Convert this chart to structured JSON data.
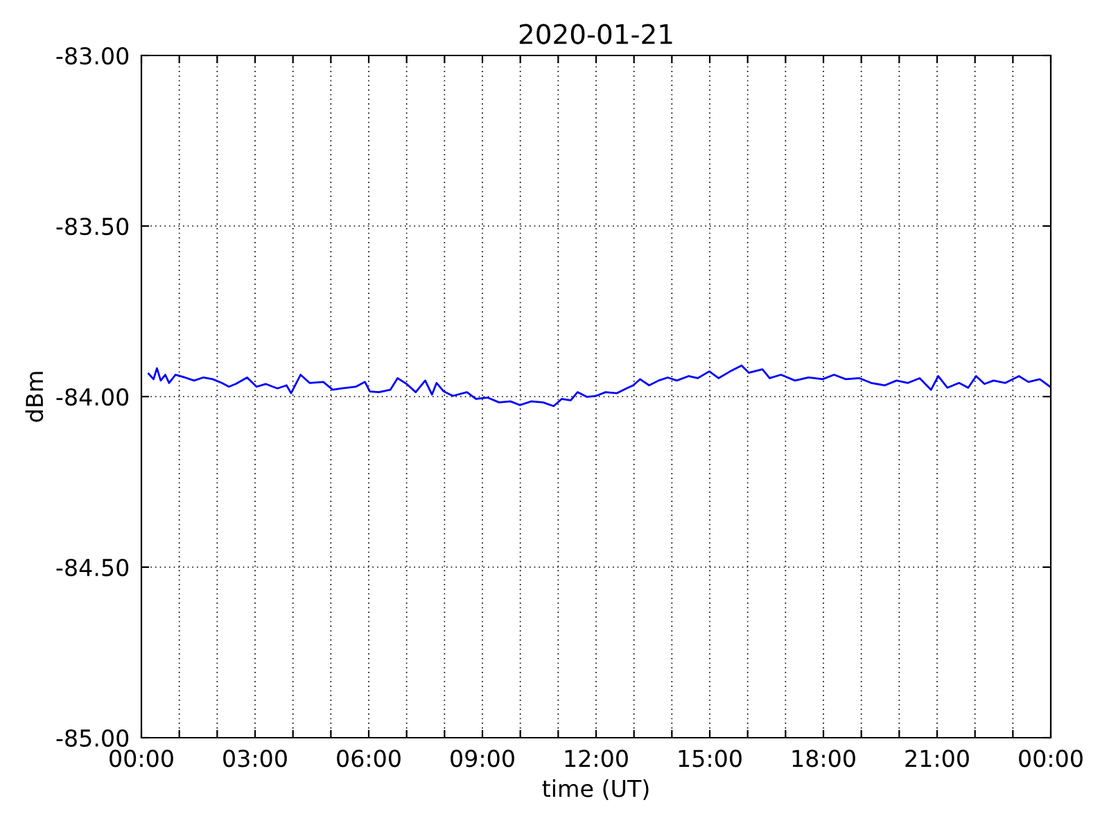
{
  "chart_data": {
    "type": "line",
    "title": "2020-01-21",
    "xlabel": "time (UT)",
    "ylabel": "dBm",
    "x": [
      0.19,
      0.32,
      0.41,
      0.51,
      0.63,
      0.73,
      0.9,
      1.15,
      1.39,
      1.63,
      1.88,
      2.12,
      2.31,
      2.49,
      2.79,
      3.04,
      3.28,
      3.59,
      3.83,
      3.95,
      4.2,
      4.44,
      4.8,
      5.05,
      5.29,
      5.66,
      5.9,
      6.03,
      6.27,
      6.57,
      6.76,
      7.0,
      7.24,
      7.49,
      7.67,
      7.79,
      7.98,
      8.22,
      8.59,
      8.83,
      9.14,
      9.44,
      9.74,
      9.99,
      10.29,
      10.6,
      10.88,
      11.09,
      11.33,
      11.51,
      11.76,
      12.0,
      12.25,
      12.55,
      12.8,
      12.98,
      13.16,
      13.4,
      13.65,
      13.89,
      14.13,
      14.44,
      14.68,
      14.99,
      15.23,
      15.54,
      15.84,
      16.03,
      16.39,
      16.58,
      16.88,
      17.25,
      17.61,
      17.98,
      18.28,
      18.59,
      18.95,
      19.26,
      19.62,
      19.93,
      20.23,
      20.54,
      20.84,
      21.03,
      21.27,
      21.58,
      21.82,
      22.03,
      22.25,
      22.49,
      22.8,
      23.16,
      23.41,
      23.71,
      23.98
    ],
    "series": [
      {
        "color": "#0000ff",
        "values": [
          -83.933,
          -83.949,
          -83.917,
          -83.953,
          -83.936,
          -83.96,
          -83.936,
          -83.944,
          -83.953,
          -83.944,
          -83.949,
          -83.96,
          -83.971,
          -83.963,
          -83.944,
          -83.971,
          -83.963,
          -83.976,
          -83.967,
          -83.99,
          -83.936,
          -83.96,
          -83.957,
          -83.98,
          -83.976,
          -83.971,
          -83.957,
          -83.985,
          -83.987,
          -83.98,
          -83.946,
          -83.963,
          -83.987,
          -83.953,
          -83.994,
          -83.96,
          -83.985,
          -83.998,
          -83.987,
          -84.007,
          -84.003,
          -84.017,
          -84.014,
          -84.025,
          -84.014,
          -84.017,
          -84.028,
          -84.007,
          -84.011,
          -83.987,
          -84.001,
          -83.998,
          -83.987,
          -83.99,
          -83.976,
          -83.967,
          -83.949,
          -83.967,
          -83.953,
          -83.944,
          -83.953,
          -83.94,
          -83.946,
          -83.926,
          -83.946,
          -83.926,
          -83.909,
          -83.93,
          -83.92,
          -83.946,
          -83.936,
          -83.953,
          -83.944,
          -83.949,
          -83.936,
          -83.949,
          -83.946,
          -83.96,
          -83.967,
          -83.953,
          -83.96,
          -83.946,
          -83.98,
          -83.94,
          -83.974,
          -83.96,
          -83.974,
          -83.94,
          -83.963,
          -83.953,
          -83.96,
          -83.94,
          -83.957,
          -83.949,
          -83.971
        ]
      }
    ],
    "xlim": [
      0,
      24
    ],
    "xticks": [
      {
        "value": 0,
        "label": "00:00"
      },
      {
        "value": 1,
        "label": null
      },
      {
        "value": 2,
        "label": null
      },
      {
        "value": 3,
        "label": "03:00"
      },
      {
        "value": 4,
        "label": null
      },
      {
        "value": 5,
        "label": null
      },
      {
        "value": 6,
        "label": "06:00"
      },
      {
        "value": 7,
        "label": null
      },
      {
        "value": 8,
        "label": null
      },
      {
        "value": 9,
        "label": "09:00"
      },
      {
        "value": 10,
        "label": null
      },
      {
        "value": 11,
        "label": null
      },
      {
        "value": 12,
        "label": "12:00"
      },
      {
        "value": 13,
        "label": null
      },
      {
        "value": 14,
        "label": null
      },
      {
        "value": 15,
        "label": "15:00"
      },
      {
        "value": 16,
        "label": null
      },
      {
        "value": 17,
        "label": null
      },
      {
        "value": 18,
        "label": "18:00"
      },
      {
        "value": 19,
        "label": null
      },
      {
        "value": 20,
        "label": null
      },
      {
        "value": 21,
        "label": "21:00"
      },
      {
        "value": 22,
        "label": null
      },
      {
        "value": 23,
        "label": null
      },
      {
        "value": 24,
        "label": "00:00"
      }
    ],
    "ylim": [
      -85,
      -83
    ],
    "yticks": [
      {
        "value": -85,
        "label": "-85.00"
      },
      {
        "value": -84.5,
        "label": "-84.50"
      },
      {
        "value": -84,
        "label": "-84.00"
      },
      {
        "value": -83.5,
        "label": "-83.50"
      },
      {
        "value": -83,
        "label": "-83.00"
      }
    ],
    "grid": true,
    "line_style": "solid"
  }
}
